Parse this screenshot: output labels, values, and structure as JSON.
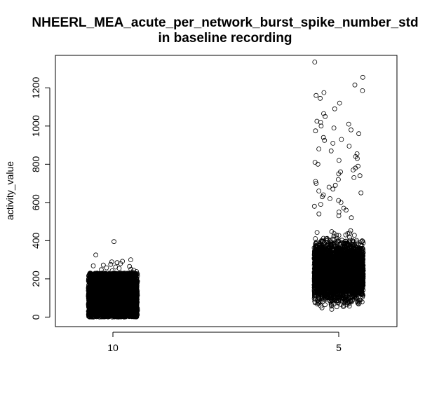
{
  "chart_data": {
    "type": "scatter",
    "title": "NHEERL_MEA_acute_per_network_burst_spike_number_std",
    "subtitle": "in baseline recording",
    "xlabel": "",
    "ylabel": "activity_value",
    "categories": [
      "10",
      "5"
    ],
    "y_ticks": [
      0,
      200,
      400,
      600,
      800,
      1000,
      1200
    ],
    "ylim": [
      -50,
      1370
    ],
    "grid": false,
    "legend": "none",
    "marker": "open-circle",
    "colors": {
      "points": "#000000",
      "axes": "#000000",
      "background": "#ffffff"
    },
    "groups": [
      {
        "category": "10",
        "n_points": 4000,
        "dense_range": [
          0,
          230
        ],
        "outliers": [
          {
            "y": 395
          },
          {
            "y": 325
          },
          {
            "y": 300
          },
          {
            "y": 292
          },
          {
            "y": 289
          },
          {
            "y": 285
          },
          {
            "y": 280
          },
          {
            "y": 276
          },
          {
            "y": 272
          },
          {
            "y": 268
          },
          {
            "y": 265
          },
          {
            "y": 262
          },
          {
            "y": 258
          },
          {
            "y": 255
          },
          {
            "y": 250
          },
          {
            "y": 248
          },
          {
            "y": 245
          },
          {
            "y": 242
          },
          {
            "y": 238
          },
          {
            "y": 236
          }
        ]
      },
      {
        "category": "5",
        "n_points": 5000,
        "dense_range": [
          0,
          480
        ],
        "outliers": [
          {
            "y": 1335
          },
          {
            "y": 1255
          },
          {
            "y": 1215
          },
          {
            "y": 1185
          },
          {
            "y": 1175
          },
          {
            "y": 1160
          },
          {
            "y": 1145
          },
          {
            "y": 1120
          },
          {
            "y": 1090
          },
          {
            "y": 1065
          },
          {
            "y": 1050
          },
          {
            "y": 1025
          },
          {
            "y": 1020
          },
          {
            "y": 1010
          },
          {
            "y": 1000
          },
          {
            "y": 990
          },
          {
            "y": 980
          },
          {
            "y": 975
          },
          {
            "y": 960
          },
          {
            "y": 940
          },
          {
            "y": 930
          },
          {
            "y": 925
          },
          {
            "y": 910
          },
          {
            "y": 895
          },
          {
            "y": 880
          },
          {
            "y": 870
          },
          {
            "y": 855
          },
          {
            "y": 840
          },
          {
            "y": 830
          },
          {
            "y": 820
          },
          {
            "y": 810
          },
          {
            "y": 800
          },
          {
            "y": 790
          },
          {
            "y": 780
          },
          {
            "y": 770
          },
          {
            "y": 760
          },
          {
            "y": 750
          },
          {
            "y": 740
          },
          {
            "y": 730
          },
          {
            "y": 720
          },
          {
            "y": 710
          },
          {
            "y": 700
          },
          {
            "y": 690
          },
          {
            "y": 680
          },
          {
            "y": 670
          },
          {
            "y": 660
          },
          {
            "y": 650
          },
          {
            "y": 640
          },
          {
            "y": 630
          },
          {
            "y": 620
          },
          {
            "y": 610
          },
          {
            "y": 600
          },
          {
            "y": 590
          },
          {
            "y": 580
          },
          {
            "y": 570
          },
          {
            "y": 560
          },
          {
            "y": 550
          },
          {
            "y": 540
          },
          {
            "y": 530
          },
          {
            "y": 520
          }
        ]
      }
    ]
  }
}
